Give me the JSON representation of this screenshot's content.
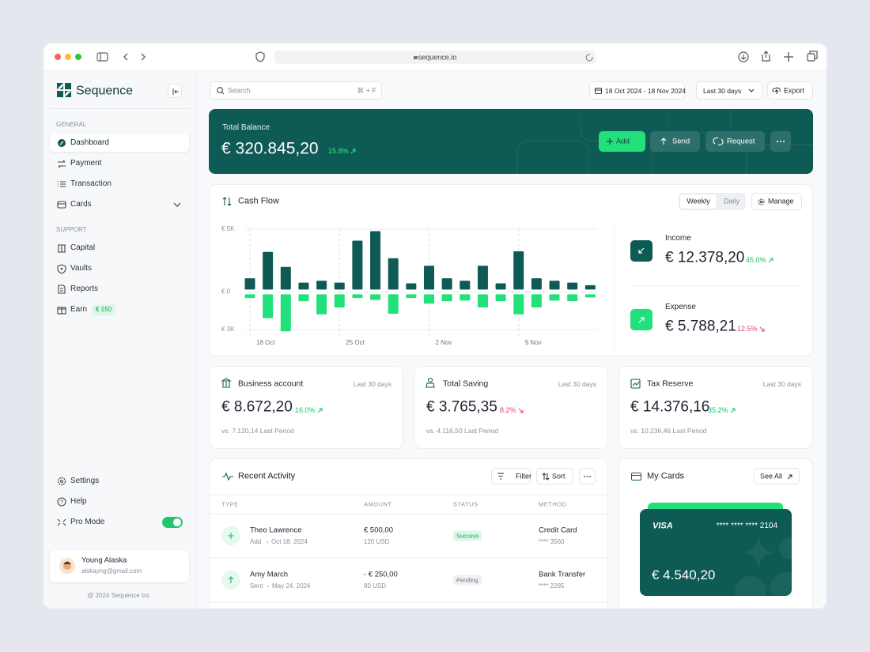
{
  "browser": {
    "url": "sequence.io"
  },
  "sidebar": {
    "brand": "Sequence",
    "general_label": "GENERAL",
    "general": [
      "Dashboard",
      "Payment",
      "Transaction",
      "Cards"
    ],
    "support_label": "SUPPORT",
    "support": [
      "Capital",
      "Vaults",
      "Reports",
      "Earn"
    ],
    "earn_badge": "€ 150",
    "bottom": [
      "Settings",
      "Help",
      "Pro Mode"
    ],
    "user": {
      "name": "Young Alaska",
      "email": "alskayng@gmail.com"
    },
    "footer": "@ 2024 Sequence Inc."
  },
  "toolbar": {
    "search": "Search",
    "shortcut": "⌘ + F",
    "date_range": "18 Oct 2024 - 18 Nov 2024",
    "period": "Last 30 days",
    "export": "Export"
  },
  "balance": {
    "label": "Total Balance",
    "amount": "€ 320.845,20",
    "change": "15.8%",
    "actions": [
      "Add",
      "Send",
      "Request"
    ]
  },
  "cash_flow": {
    "title": "Cash Flow",
    "tabs": [
      "Weekly",
      "Daily"
    ],
    "manage": "Manage",
    "income": {
      "label": "Income",
      "amount": "€ 12.378,20",
      "change": "45.0%"
    },
    "expense": {
      "label": "Expense",
      "amount": "€ 5.788,21",
      "change": "12.5%"
    }
  },
  "chart_data": {
    "type": "bar",
    "categories": [
      "18 Oct",
      null,
      null,
      null,
      null,
      "25 Oct",
      null,
      null,
      null,
      null,
      "2 Nov",
      null,
      null,
      null,
      null,
      "9 Nov",
      null,
      null,
      null,
      null
    ],
    "series": [
      {
        "color": "#0e5a55",
        "values": [
          900,
          3000,
          1800,
          550,
          700,
          550,
          3900,
          4650,
          2500,
          500,
          1900,
          900,
          700,
          1900,
          500,
          3050,
          900,
          700,
          550,
          350
        ]
      },
      {
        "color": "#22e07a",
        "values": [
          -300,
          -1900,
          -2950,
          -550,
          -1600,
          -1050,
          -300,
          -450,
          -1550,
          -300,
          -750,
          -550,
          -500,
          -1050,
          -550,
          -1600,
          -1050,
          -500,
          -550,
          -250
        ]
      }
    ],
    "ylim": [
      -3000,
      5000
    ],
    "yticks": [
      {
        "value": 5000,
        "label": "€ 5K"
      },
      {
        "value": 0,
        "label": "€ 0"
      },
      {
        "value": -3000,
        "label": "€ 3K"
      }
    ],
    "grid": true
  },
  "stats": [
    {
      "title": "Business account",
      "period": "Last 30 days",
      "amount": "€ 8.672,20",
      "change": "16.0%",
      "compare": "vs. 7.120,14 Last Period"
    },
    {
      "title": "Total Saving",
      "period": "Last 30 days",
      "amount": "€ 3.765,35",
      "change": "8.2%",
      "compare": "vs. 4.116,50 Last Period"
    },
    {
      "title": "Tax Reserve",
      "period": "Last 30 days",
      "amount": "€ 14.376,16",
      "change": "35.2%",
      "compare": "vs. 10.236,46 Last Period"
    }
  ],
  "activity": {
    "title": "Recent Activity",
    "filter": "Filter",
    "sort": "Sort",
    "columns": [
      "TYPE",
      "AMOUNT",
      "STATUS",
      "METHOD"
    ],
    "rows": [
      {
        "name": "Theo Lawrence",
        "kind": "Add",
        "date": "Oct 18, 2024",
        "amount": "€ 500,00",
        "usd": "120 USD",
        "status": "Success",
        "method": "Credit Card",
        "account": "**** 3560"
      },
      {
        "name": "Amy March",
        "kind": "Sent",
        "date": "May 24, 2024",
        "amount": "- € 250,00",
        "usd": "80 USD",
        "status": "Pending",
        "method": "Bank Transfer",
        "account": "**** 2285"
      }
    ]
  },
  "cards": {
    "title": "My Cards",
    "see_all": "See All",
    "brand": "VISA",
    "number": "**** **** **** 2104",
    "balance": "€ 4.540,20"
  }
}
